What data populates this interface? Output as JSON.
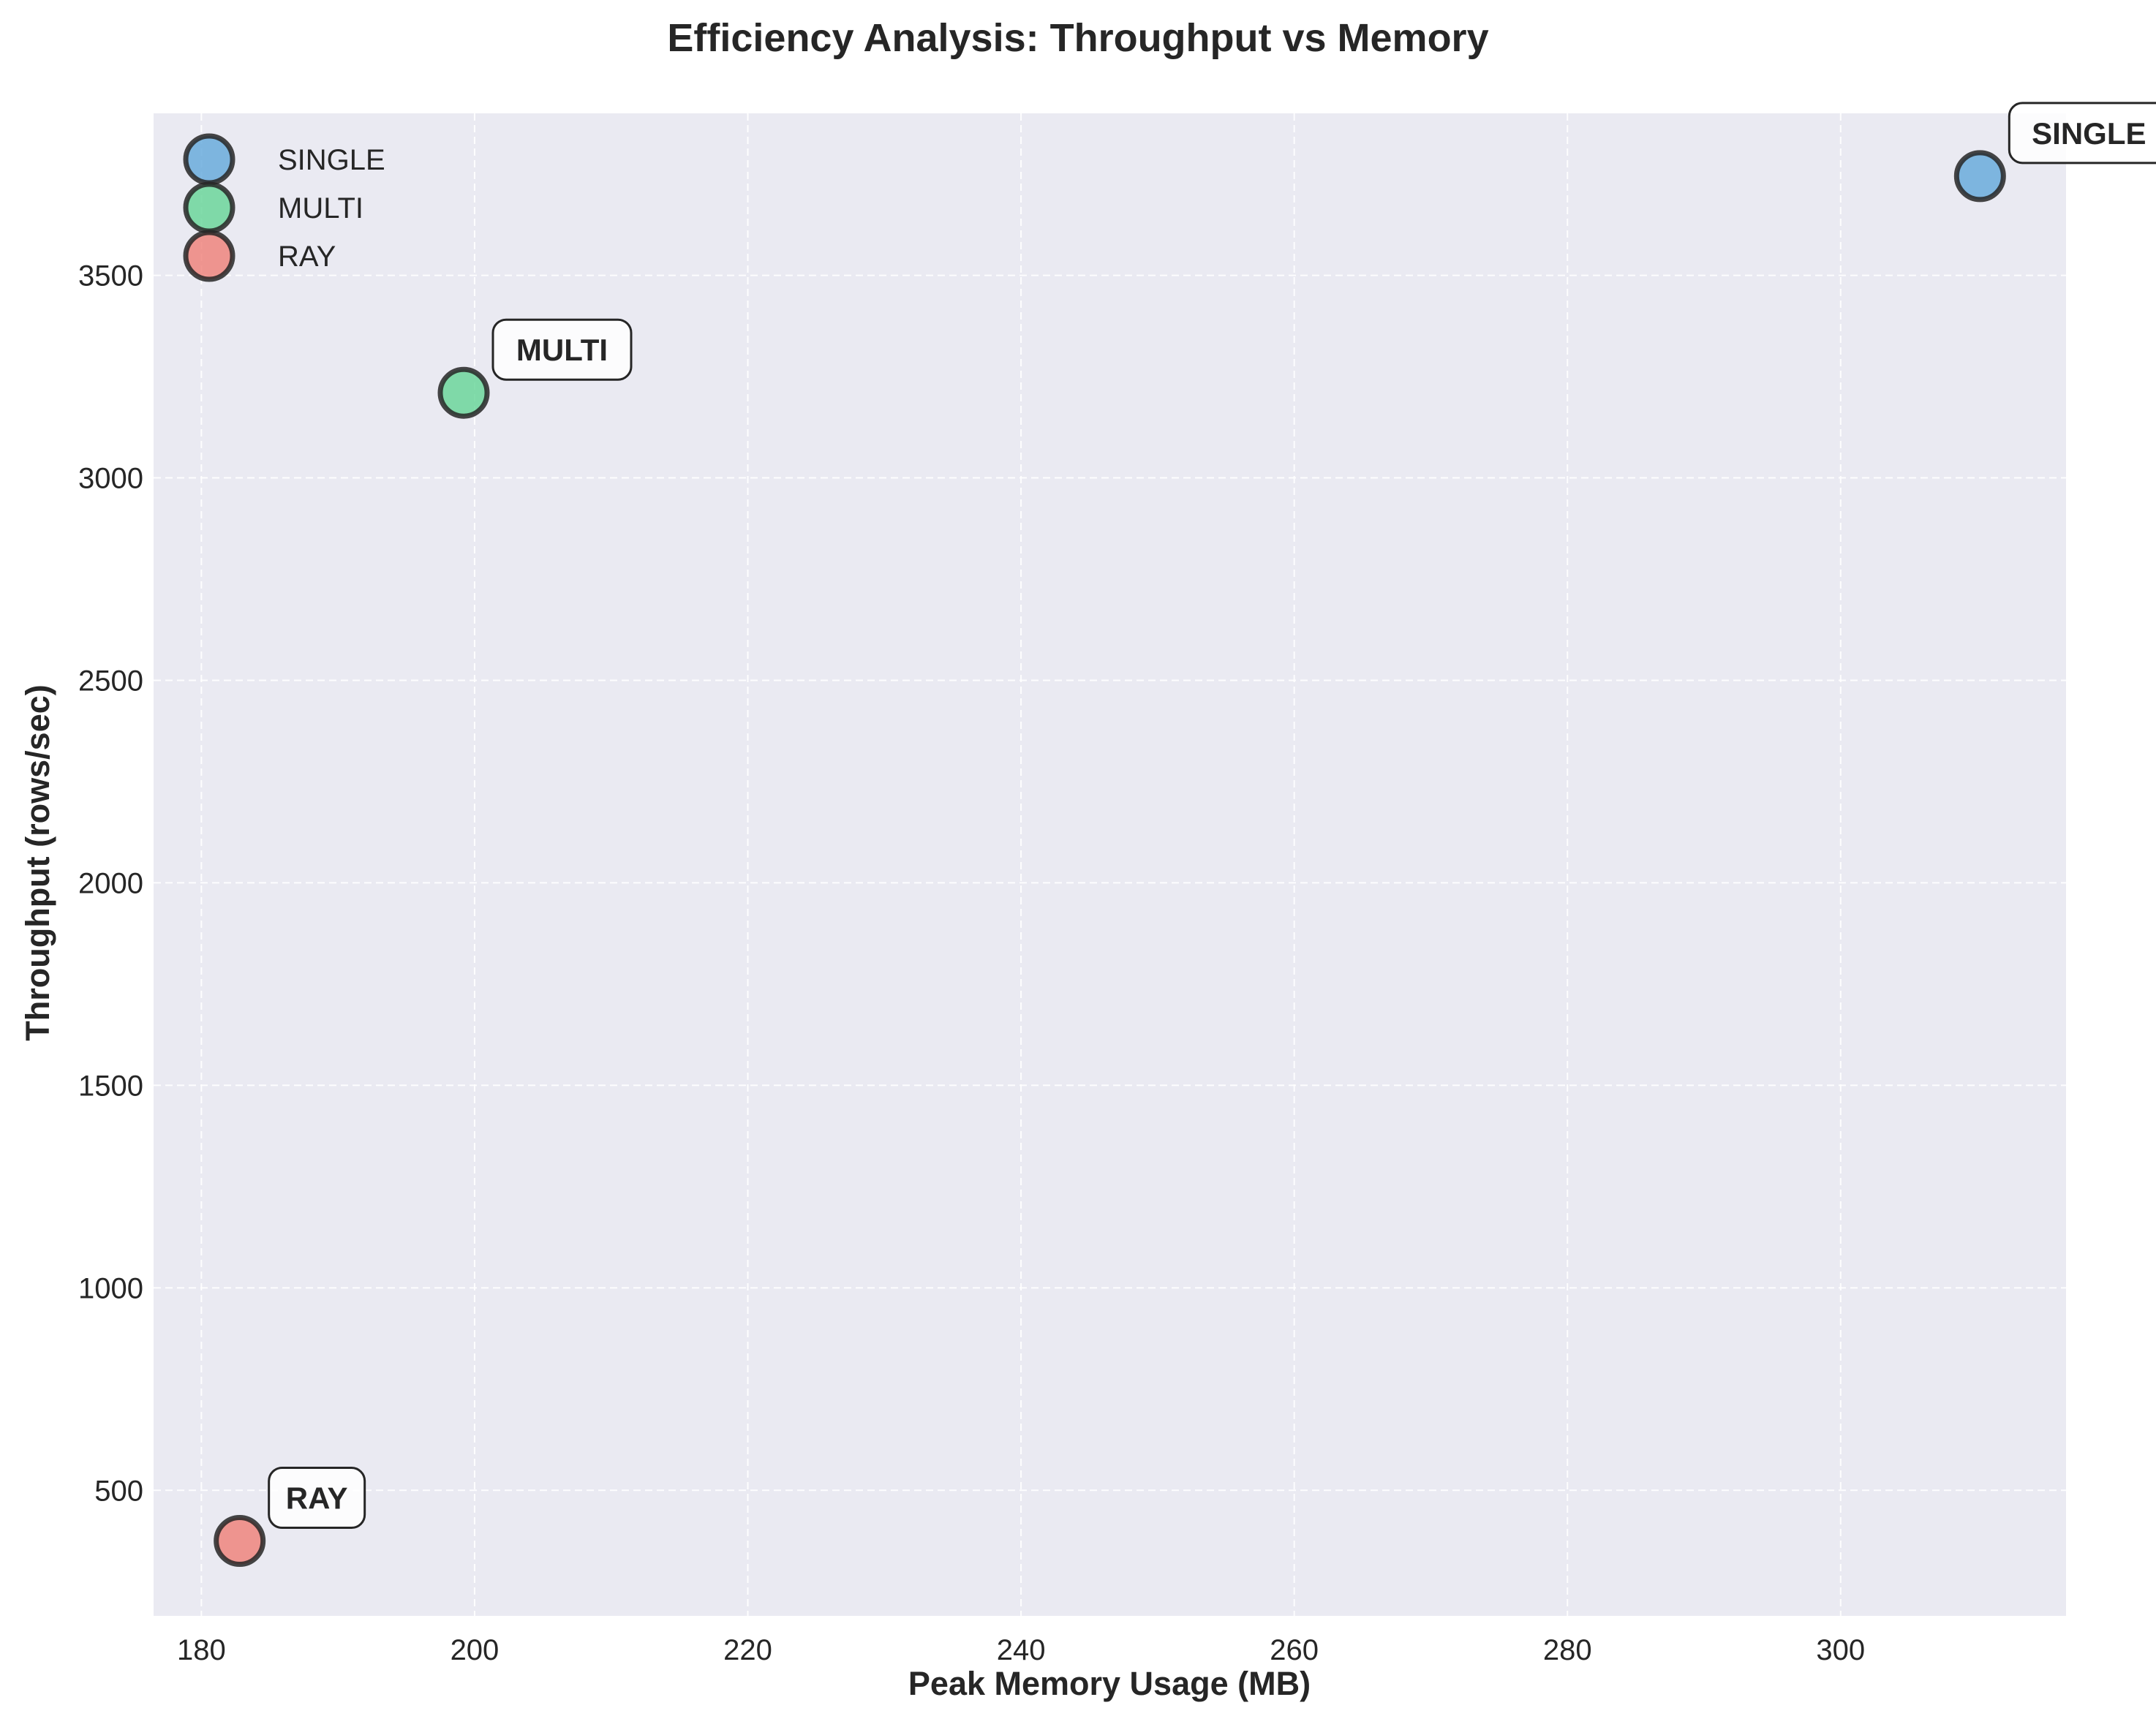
{
  "chart_data": {
    "type": "scatter",
    "title": "Efficiency Analysis: Throughput vs Memory",
    "xlabel": "Peak Memory Usage (MB)",
    "ylabel": "Throughput (rows/sec)",
    "xlim": [
      176.5,
      316.5
    ],
    "ylim": [
      190,
      3900
    ],
    "xticks": [
      180,
      200,
      220,
      240,
      260,
      280,
      300
    ],
    "yticks": [
      500,
      1000,
      1500,
      2000,
      2500,
      3000,
      3500
    ],
    "grid": true,
    "legend_position": "top-left",
    "series": [
      {
        "name": "SINGLE",
        "color": "#5DA5DA",
        "x": [
          310.2
        ],
        "y": [
          3745
        ],
        "annotation": "SINGLE"
      },
      {
        "name": "MULTI",
        "color": "#60D394",
        "x": [
          199.2
        ],
        "y": [
          3210
        ],
        "annotation": "MULTI"
      },
      {
        "name": "RAY",
        "color": "#EE7B73",
        "x": [
          182.8
        ],
        "y": [
          375
        ],
        "annotation": "RAY"
      }
    ]
  }
}
